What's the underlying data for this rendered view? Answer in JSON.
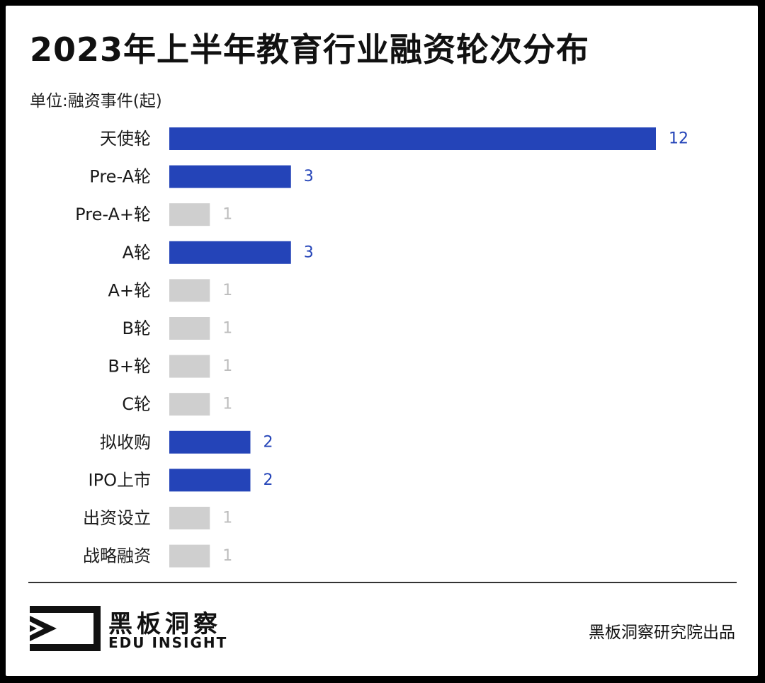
{
  "title": "2023年上半年教育行业融资轮次分布",
  "unit": "单位:融资事件(起)",
  "colors": {
    "highlight": "#2444b8",
    "muted": "#cfcfcf",
    "muted_text": "#bdbdbd"
  },
  "chart_data": {
    "type": "bar",
    "orientation": "horizontal",
    "categories": [
      "天使轮",
      "Pre-A轮",
      "Pre-A+轮",
      "A轮",
      "A+轮",
      "B轮",
      "B+轮",
      "C轮",
      "拟收购",
      "IPO上市",
      "出资设立",
      "战略融资"
    ],
    "values": [
      12,
      3,
      1,
      3,
      1,
      1,
      1,
      1,
      2,
      2,
      1,
      1
    ],
    "xlim": [
      0,
      12
    ],
    "grid": false,
    "legend": "none",
    "data_labels": true
  },
  "footer": {
    "brand_cn": "黑板洞察",
    "brand_en": "EDU INSIGHT",
    "credit": "黑板洞察研究院出品",
    "logo_icon": "eye-play-logo-icon"
  }
}
